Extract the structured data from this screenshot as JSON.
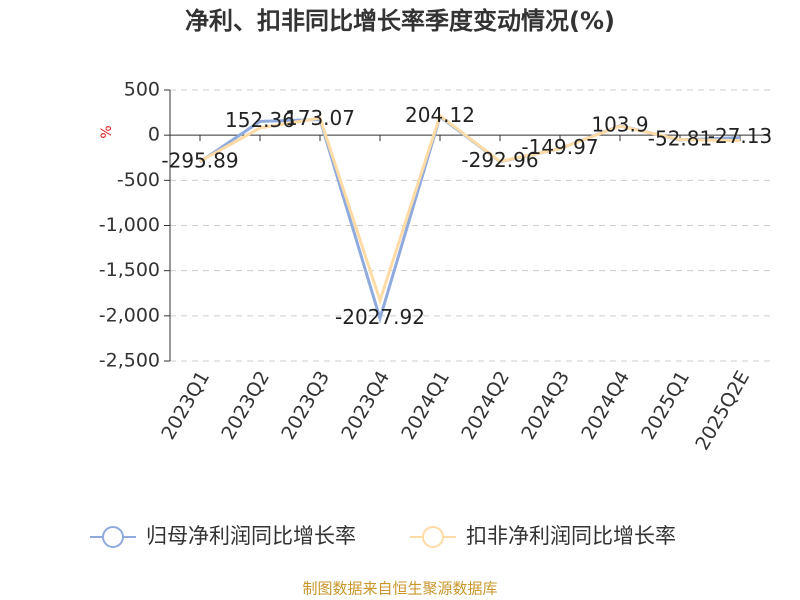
{
  "chart_data": {
    "type": "line",
    "title": "净利、扣非同比增长率季度变动情况(%)",
    "y_label": "%",
    "source": "制图数据来自恒生聚源数据库",
    "categories": [
      "2023Q1",
      "2023Q2",
      "2023Q3",
      "2023Q4",
      "2024Q1",
      "2024Q2",
      "2024Q3",
      "2024Q4",
      "2025Q1",
      "2025Q2E"
    ],
    "series": [
      {
        "name": "归母净利润同比增长率",
        "color": "#8faadc",
        "values": [
          -295.89,
          152.36,
          173.07,
          -2027.92,
          204.12,
          -292.96,
          -149.97,
          103.9,
          -52.81,
          -27.13
        ]
      },
      {
        "name": "扣非净利润同比增长率",
        "color": "#ffdba6",
        "values": [
          -290,
          80,
          190,
          -1830,
          215,
          -290,
          -150,
          100,
          -50,
          -60
        ]
      }
    ],
    "ylim": [
      -2500,
      500
    ],
    "yticks": [
      500,
      0,
      -500,
      {
        "value": -1000,
        "label": "-1,000"
      },
      {
        "value": -1500,
        "label": "-1,500"
      },
      {
        "value": -2000,
        "label": "-2,000"
      },
      {
        "value": -2500,
        "label": "-2,500"
      }
    ],
    "grid": true
  }
}
